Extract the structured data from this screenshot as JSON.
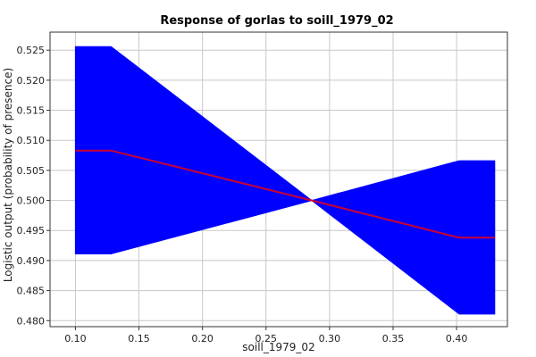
{
  "chart_data": {
    "type": "area",
    "title": "Response of gorlas to soill_1979_02",
    "xlabel": "soill_1979_02",
    "ylabel": "Logistic output (probability of presence)",
    "xlim": [
      0.08,
      0.44
    ],
    "ylim": [
      0.479,
      0.528
    ],
    "xticks": [
      0.1,
      0.15,
      0.2,
      0.25,
      0.3,
      0.35,
      0.4
    ],
    "xtick_labels": [
      "0.10",
      "0.15",
      "0.20",
      "0.25",
      "0.30",
      "0.35",
      "0.40"
    ],
    "yticks": [
      0.48,
      0.485,
      0.49,
      0.495,
      0.5,
      0.505,
      0.51,
      0.515,
      0.52,
      0.525
    ],
    "ytick_labels": [
      "0.480",
      "0.485",
      "0.490",
      "0.495",
      "0.500",
      "0.505",
      "0.510",
      "0.515",
      "0.520",
      "0.525"
    ],
    "grid": true,
    "band_color": "#0000ff",
    "line_color": "#cc0033",
    "band_upper": [
      {
        "x": 0.1,
        "y": 0.5256
      },
      {
        "x": 0.128,
        "y": 0.5256
      },
      {
        "x": 0.286,
        "y": 0.5
      },
      {
        "x": 0.402,
        "y": 0.5066
      },
      {
        "x": 0.43,
        "y": 0.5066
      }
    ],
    "band_lower": [
      {
        "x": 0.1,
        "y": 0.4911
      },
      {
        "x": 0.128,
        "y": 0.4911
      },
      {
        "x": 0.286,
        "y": 0.5
      },
      {
        "x": 0.402,
        "y": 0.4811
      },
      {
        "x": 0.43,
        "y": 0.4811
      }
    ],
    "mean_line": [
      {
        "x": 0.1,
        "y": 0.5083
      },
      {
        "x": 0.128,
        "y": 0.5083
      },
      {
        "x": 0.286,
        "y": 0.5
      },
      {
        "x": 0.402,
        "y": 0.4938
      },
      {
        "x": 0.43,
        "y": 0.4938
      }
    ]
  }
}
